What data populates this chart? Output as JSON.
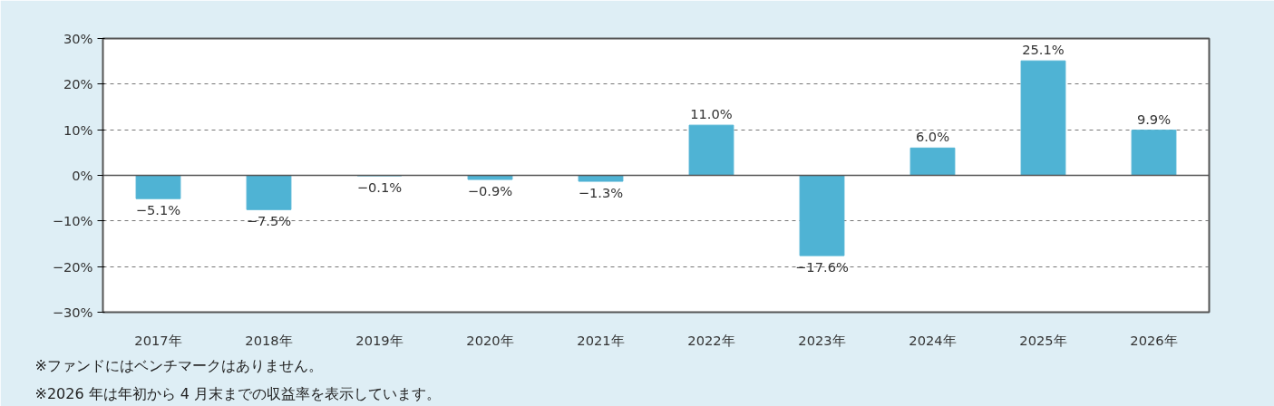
{
  "chart_data": {
    "type": "bar",
    "categories": [
      "2017年",
      "2018年",
      "2019年",
      "2020年",
      "2021年",
      "2022年",
      "2023年",
      "2024年",
      "2025年",
      "2026年"
    ],
    "values": [
      -5.1,
      -7.5,
      -0.1,
      -0.9,
      -1.3,
      11.0,
      -17.6,
      6.0,
      25.1,
      9.9
    ],
    "value_labels": [
      "−5.1%",
      "−7.5%",
      "−0.1%",
      "−0.9%",
      "−1.3%",
      "11.0%",
      "−17.6%",
      "6.0%",
      "25.1%",
      "9.9%"
    ],
    "color": "#4fb3d4",
    "ylim": [
      -30,
      30
    ],
    "yticks": [
      {
        "value": -30,
        "label": "−30%"
      },
      {
        "value": -20,
        "label": "−20%"
      },
      {
        "value": -10,
        "label": "−10%"
      },
      {
        "value": 0,
        "label": "0%"
      },
      {
        "value": 10,
        "label": "10%"
      },
      {
        "value": 20,
        "label": "20%"
      },
      {
        "value": 30,
        "label": "30%"
      }
    ],
    "grid": "y",
    "annotations": [
      "※ファンドにはベンチマークはありません。",
      "※2026 年は年初から 4 月末までの収益率を表示しています。"
    ]
  }
}
